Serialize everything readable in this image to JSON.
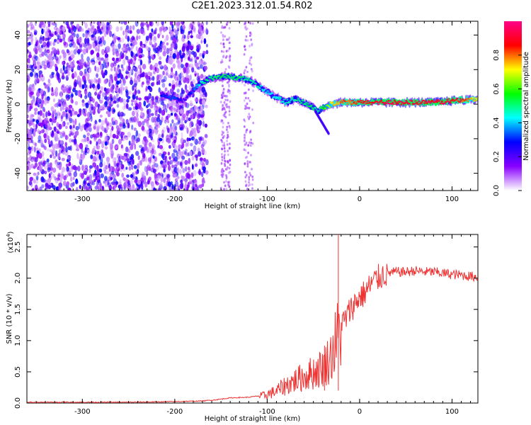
{
  "page_title": "C2E1.2023.312.01.54.R02",
  "colorbar": {
    "label": "Normalized spectral amplitude",
    "ticks": [
      "0.0",
      "0.2",
      "0.4",
      "0.6",
      "0.8"
    ]
  },
  "chart_data": [
    {
      "type": "heatmap",
      "xlabel": "Height of straight line (km)",
      "ylabel": "Frequency (Hz)",
      "xlim": [
        -360,
        128
      ],
      "ylim": [
        -50,
        48
      ],
      "x_ticks": [
        "-300",
        "-200",
        "-100",
        "0",
        "100"
      ],
      "y_ticks": [
        "-40",
        "-20",
        "0",
        "20",
        "40"
      ],
      "grid": false,
      "colormap": [
        "#ffffff",
        "#8800ff",
        "#0000ff",
        "#00ffff",
        "#00ff00",
        "#ffff00",
        "#ff0000",
        "#ff0088"
      ],
      "ridge": {
        "x": [
          -215,
          -200,
          -190,
          -180,
          -170,
          -160,
          -150,
          -140,
          -130,
          -120,
          -110,
          -100,
          -90,
          -80,
          -70,
          -60,
          -50,
          -45,
          -40,
          -30,
          -20,
          -10,
          0,
          20,
          40,
          60,
          80,
          100,
          128
        ],
        "frequency": [
          6,
          3,
          2,
          8,
          13,
          15,
          16,
          16,
          15,
          14,
          11,
          7,
          4,
          1,
          3,
          1,
          -2,
          -4,
          -2,
          0,
          1,
          1,
          1,
          1,
          1,
          1,
          1,
          2,
          3
        ],
        "amplitude": [
          0.3,
          0.35,
          0.2,
          0.35,
          0.5,
          0.55,
          0.55,
          0.55,
          0.55,
          0.5,
          0.5,
          0.45,
          0.45,
          0.5,
          0.5,
          0.55,
          0.55,
          0.5,
          0.6,
          0.75,
          0.85,
          0.85,
          0.9,
          0.95,
          0.95,
          0.95,
          0.95,
          0.95,
          0.75
        ]
      }
    },
    {
      "type": "line",
      "xlabel": "Height of straight line (km)",
      "ylabel": "SNR (10 * v/v)",
      "y_multiplier": "(x10",
      "y_multiplier_exp": "4",
      "y_multiplier_close": ")",
      "xlim": [
        -360,
        128
      ],
      "ylim": [
        0,
        2.7
      ],
      "x_ticks": [
        "-300",
        "-200",
        "-100",
        "0",
        "100"
      ],
      "y_ticks": [
        "0.0",
        "0.5",
        "1.0",
        "1.5",
        "2.0",
        "2.5"
      ],
      "grid": false,
      "series": [
        {
          "color": "#ee3333",
          "x": [
            -360,
            -300,
            -250,
            -200,
            -170,
            -155,
            -140,
            -120,
            -105,
            -90,
            -80,
            -70,
            -60,
            -50,
            -40,
            -35,
            -30,
            -25,
            -20,
            -15,
            -10,
            -5,
            0,
            5,
            10,
            15,
            20,
            25,
            30,
            40,
            50,
            60,
            70,
            80,
            90,
            100,
            110,
            120,
            128
          ],
          "y": [
            0.01,
            0.01,
            0.01,
            0.02,
            0.03,
            0.05,
            0.08,
            0.09,
            0.12,
            0.2,
            0.3,
            0.38,
            0.45,
            0.52,
            0.6,
            0.7,
            0.82,
            1.1,
            1.25,
            1.35,
            1.5,
            1.6,
            1.7,
            1.75,
            1.85,
            1.95,
            2.0,
            2.05,
            2.08,
            2.1,
            2.1,
            2.12,
            2.1,
            2.1,
            2.08,
            2.06,
            2.05,
            2.03,
            2.02
          ]
        }
      ],
      "annotations": [
        {
          "x": -23,
          "y": 2.7,
          "text": ""
        },
        {
          "x": -38,
          "y": 0.92,
          "text": ""
        }
      ]
    }
  ]
}
